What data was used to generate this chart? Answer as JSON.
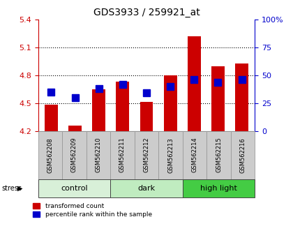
{
  "title": "GDS3933 / 259921_at",
  "samples": [
    "GSM562208",
    "GSM562209",
    "GSM562210",
    "GSM562211",
    "GSM562212",
    "GSM562213",
    "GSM562214",
    "GSM562215",
    "GSM562216"
  ],
  "red_values": [
    4.48,
    4.26,
    4.65,
    4.73,
    4.51,
    4.8,
    5.22,
    4.9,
    4.93
  ],
  "blue_values": [
    35,
    30,
    38,
    42,
    34,
    40,
    46,
    44,
    46
  ],
  "bar_bottom": 4.2,
  "ylim_left": [
    4.2,
    5.4
  ],
  "ylim_right": [
    0,
    100
  ],
  "yticks_left": [
    4.2,
    4.5,
    4.8,
    5.1,
    5.4
  ],
  "yticks_right": [
    0,
    25,
    50,
    75,
    100
  ],
  "group_info": [
    {
      "label": "control",
      "start": 0,
      "end": 3,
      "color": "#d8f0d8"
    },
    {
      "label": "dark",
      "start": 3,
      "end": 6,
      "color": "#c0ecc0"
    },
    {
      "label": "high light",
      "start": 6,
      "end": 9,
      "color": "#44cc44"
    }
  ],
  "red_color": "#cc0000",
  "blue_color": "#0000cc",
  "sample_box_color": "#cccccc",
  "sample_box_edge": "#999999",
  "legend_red": "transformed count",
  "legend_blue": "percentile rank within the sample",
  "left_axis_color": "#cc0000",
  "right_axis_color": "#0000cc",
  "bar_width": 0.55,
  "blue_marker_size": 7,
  "stress_label": "stress",
  "grid_yticks": [
    4.5,
    4.8,
    5.1
  ]
}
